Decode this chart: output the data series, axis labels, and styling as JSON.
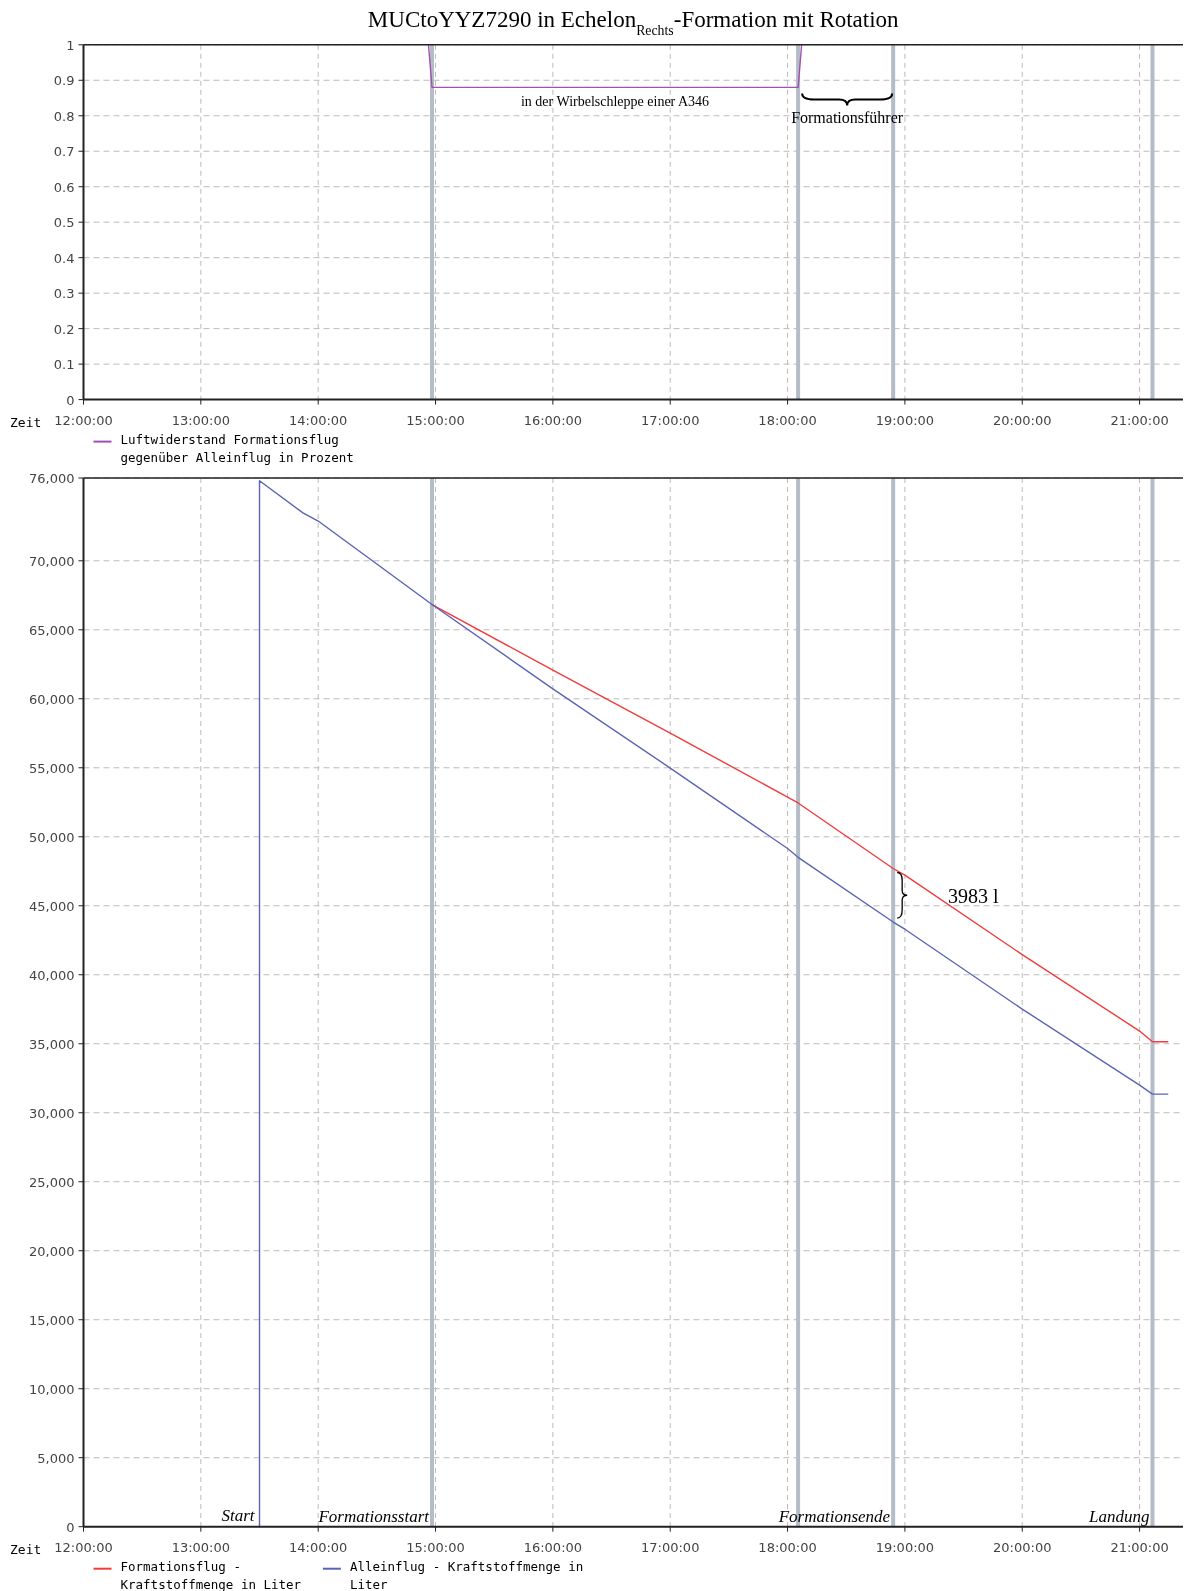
{
  "chart_data": [
    {
      "type": "line",
      "title": "MUCtoYYZ7290 in Echelon$_{Rechts}$-Formation mit Rotation",
      "xlabel": "Zeit",
      "xlim": [
        12,
        21.37
      ],
      "xticks": [
        {
          "value": 12,
          "label": "12:00:00"
        },
        {
          "value": 13,
          "label": "13:00:00"
        },
        {
          "value": 14,
          "label": "14:00:00"
        },
        {
          "value": 15,
          "label": "15:00:00"
        },
        {
          "value": 16,
          "label": "16:00:00"
        },
        {
          "value": 17,
          "label": "17:00:00"
        },
        {
          "value": 18,
          "label": "18:00:00"
        },
        {
          "value": 19,
          "label": "19:00:00"
        },
        {
          "value": 20,
          "label": "20:00:00"
        },
        {
          "value": 21,
          "label": "21:00:00"
        }
      ],
      "ylim": [
        0,
        1
      ],
      "yticks": [
        0,
        0.1,
        0.2,
        0.3,
        0.4,
        0.5,
        0.6,
        0.7,
        0.8,
        0.9,
        1
      ],
      "series": [
        {
          "name": "Luftwiderstand Formationsflug gegenüber Alleinflug in Prozent",
          "color": "#a050b0",
          "x": [
            14.94,
            14.97,
            18.09,
            18.12
          ],
          "values": [
            1,
            0.88,
            0.88,
            1
          ]
        }
      ],
      "ref_lines": [
        {
          "axis": "x",
          "value": 14.97,
          "color": "#b4bcc8"
        },
        {
          "axis": "x",
          "value": 18.09,
          "color": "#b4bcc8"
        },
        {
          "axis": "x",
          "value": 18.9,
          "color": "#b4bcc8"
        },
        {
          "axis": "x",
          "value": 21.11,
          "color": "#b4bcc8"
        }
      ],
      "annotations": [
        {
          "text": "in der Wirbelschleppe einer A346",
          "x": 16.53,
          "y": 0.88
        },
        "Formationsführer"
      ],
      "grid": true,
      "legend": "bottom"
    },
    {
      "type": "line",
      "xlabel": "Zeit",
      "xlim": [
        12,
        21.37
      ],
      "xticks": [
        {
          "value": 12,
          "label": "12:00:00"
        },
        {
          "value": 13,
          "label": "13:00:00"
        },
        {
          "value": 14,
          "label": "14:00:00"
        },
        {
          "value": 15,
          "label": "15:00:00"
        },
        {
          "value": 16,
          "label": "16:00:00"
        },
        {
          "value": 17,
          "label": "17:00:00"
        },
        {
          "value": 18,
          "label": "18:00:00"
        },
        {
          "value": 19,
          "label": "19:00:00"
        },
        {
          "value": 20,
          "label": "20:00:00"
        },
        {
          "value": 21,
          "label": "21:00:00"
        }
      ],
      "ylim": [
        0,
        76000
      ],
      "yticks": [
        0,
        {
          "value": 5000,
          "label": "5,000"
        },
        {
          "value": 10000,
          "label": "10,000"
        },
        {
          "value": 15000,
          "label": "15,000"
        },
        {
          "value": 20000,
          "label": "20,000"
        },
        {
          "value": 25000,
          "label": "25,000"
        },
        {
          "value": 30000,
          "label": "30,000"
        },
        {
          "value": 35000,
          "label": "35,000"
        },
        {
          "value": 40000,
          "label": "40,000"
        },
        {
          "value": 45000,
          "label": "45,000"
        },
        {
          "value": 50000,
          "label": "50,000"
        },
        {
          "value": 55000,
          "label": "55,000"
        },
        {
          "value": 60000,
          "label": "60,000"
        },
        {
          "value": 65000,
          "label": "65,000"
        },
        {
          "value": 70000,
          "label": "70,000"
        },
        {
          "value": 76000,
          "label": "76,000"
        }
      ],
      "series": [
        {
          "name": "Formationsflug - Kraftstoffmenge in Liter",
          "color": "#f03c3c",
          "x": [
            14.97,
            16,
            17,
            18,
            18.09,
            18.9,
            19,
            20,
            21,
            21.11,
            21.24
          ],
          "values": [
            66830,
            62080,
            57510,
            52880,
            52450,
            47700,
            47220,
            41460,
            35920,
            35140,
            35140
          ]
        },
        {
          "name": "Alleinflug - Kraftstoffmenge in Liter",
          "color": "#5a64b4",
          "x": [
            13.5,
            13.5,
            13.87,
            14,
            14.97,
            16,
            17,
            18,
            18.09,
            18.9,
            19,
            20,
            21,
            21.11,
            21.24
          ],
          "values": [
            0,
            75800,
            73470,
            72880,
            66830,
            60720,
            54980,
            49150,
            48510,
            43820,
            43300,
            37510,
            32000,
            31350,
            31350
          ]
        }
      ],
      "ref_lines": [
        {
          "axis": "x",
          "value": 14.97,
          "label": "Formationsstart",
          "color": "#b4bcc8"
        },
        {
          "axis": "x",
          "value": 18.09,
          "color": "#b4bcc8"
        },
        {
          "axis": "x",
          "value": 18.9,
          "label": "Formationsende",
          "color": "#b4bcc8"
        },
        {
          "axis": "x",
          "value": 21.11,
          "label": "Landung",
          "color": "#b4bcc8"
        }
      ],
      "annotations": [
        {
          "text": "Start",
          "x": 13.5,
          "y": 0
        },
        "3983 l"
      ],
      "grid": true,
      "legend": "bottom"
    }
  ]
}
